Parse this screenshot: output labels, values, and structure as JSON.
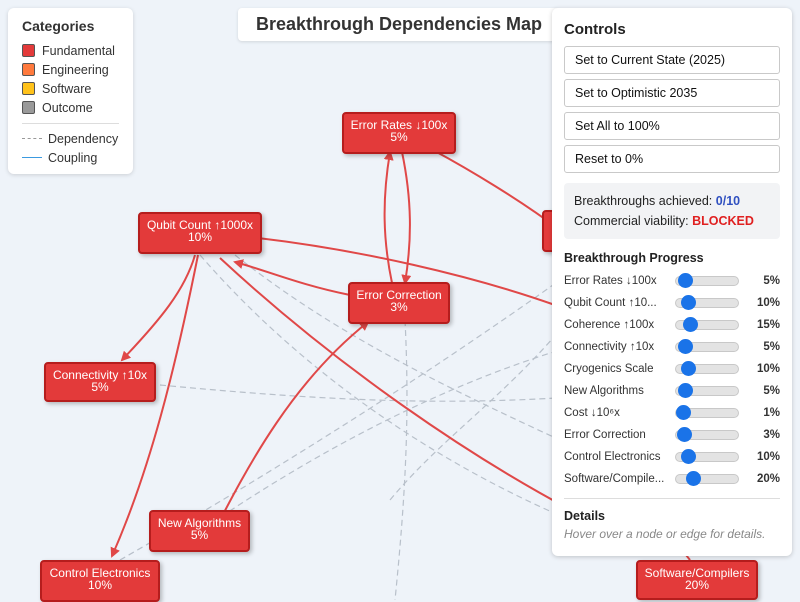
{
  "title": "Breakthrough Dependencies Map",
  "legend": {
    "heading": "Categories",
    "categories": [
      {
        "label": "Fundamental",
        "color": "#e33a3a"
      },
      {
        "label": "Engineering",
        "color": "#ff7a3d"
      },
      {
        "label": "Software",
        "color": "#ffc21a"
      },
      {
        "label": "Outcome",
        "color": "#9a9a9a"
      }
    ],
    "edges": [
      {
        "label": "Dependency",
        "style": "dashed",
        "color": "#999999"
      },
      {
        "label": "Coupling",
        "style": "solid",
        "color": "#3b9ae0"
      }
    ]
  },
  "nodes": [
    {
      "id": "error_rates",
      "label": "Error Rates ↓100x",
      "value": "5%"
    },
    {
      "id": "qubit_count",
      "label": "Qubit Count ↑1000x",
      "value": "10%"
    },
    {
      "id": "error_correction",
      "label": "Error Correction",
      "value": "3%"
    },
    {
      "id": "connectivity",
      "label": "Connectivity ↑10x",
      "value": "5%"
    },
    {
      "id": "new_algorithms",
      "label": "New Algorithms",
      "value": "5%"
    },
    {
      "id": "control_electronics",
      "label": "Control Electronics",
      "value": "10%"
    },
    {
      "id": "software_compilers",
      "label": "Software/Compilers",
      "value": "20%"
    }
  ],
  "controls": {
    "heading": "Controls",
    "buttons": [
      "Set to Current State (2025)",
      "Set to Optimistic 2035",
      "Set All to 100%",
      "Reset to 0%"
    ]
  },
  "status": {
    "achieved_label": "Breakthroughs achieved:",
    "achieved_value": "0/10",
    "viability_label": "Commercial viability:",
    "viability_value": "BLOCKED"
  },
  "progress": {
    "heading": "Breakthrough Progress",
    "items": [
      {
        "label": "Error Rates ↓100x",
        "value": 5,
        "display": "5%"
      },
      {
        "label": "Qubit Count ↑10...",
        "value": 10,
        "display": "10%"
      },
      {
        "label": "Coherence ↑100x",
        "value": 15,
        "display": "15%"
      },
      {
        "label": "Connectivity ↑10x",
        "value": 5,
        "display": "5%"
      },
      {
        "label": "Cryogenics Scale",
        "value": 10,
        "display": "10%"
      },
      {
        "label": "New Algorithms",
        "value": 5,
        "display": "5%"
      },
      {
        "label": "Cost ↓10⁶x",
        "value": 1,
        "display": "1%"
      },
      {
        "label": "Error Correction",
        "value": 3,
        "display": "3%"
      },
      {
        "label": "Control Electronics",
        "value": 10,
        "display": "10%"
      },
      {
        "label": "Software/Compile...",
        "value": 20,
        "display": "20%"
      }
    ]
  },
  "details": {
    "heading": "Details",
    "hint": "Hover over a node or edge for details."
  }
}
